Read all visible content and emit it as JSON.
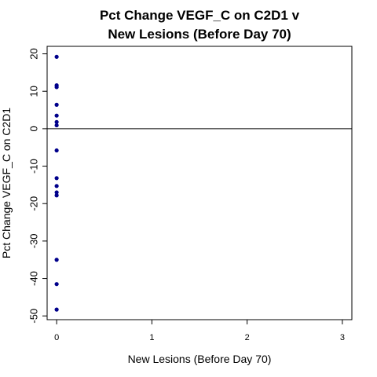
{
  "chart_data": {
    "type": "scatter",
    "title_lines": [
      "Pct Change VEGF_C on C2D1 v",
      "New Lesions (Before Day 70)"
    ],
    "xlabel": "New Lesions (Before Day 70)",
    "ylabel": "Pct Change VEGF_C on C2D1",
    "xlim": [
      -0.1,
      3.1
    ],
    "ylim": [
      -51,
      22
    ],
    "x_ticks": [
      0,
      1,
      2,
      3
    ],
    "y_ticks": [
      20,
      10,
      0,
      -10,
      -20,
      -30,
      -40,
      -50
    ],
    "reference_line_y": 0,
    "point_color": "#00008B",
    "points": [
      {
        "x": 0,
        "y": 19.2
      },
      {
        "x": 0,
        "y": 11.6
      },
      {
        "x": 0,
        "y": 11.1
      },
      {
        "x": 0,
        "y": 6.4
      },
      {
        "x": 0,
        "y": 3.5
      },
      {
        "x": 0,
        "y": 1.8
      },
      {
        "x": 0,
        "y": 0.9
      },
      {
        "x": 0,
        "y": -5.8
      },
      {
        "x": 0,
        "y": -13.2
      },
      {
        "x": 0,
        "y": -15.3
      },
      {
        "x": 0,
        "y": -17.0
      },
      {
        "x": 0,
        "y": -17.8
      },
      {
        "x": 0,
        "y": -35.0
      },
      {
        "x": 0,
        "y": -41.5
      },
      {
        "x": 0,
        "y": -48.3
      }
    ]
  }
}
